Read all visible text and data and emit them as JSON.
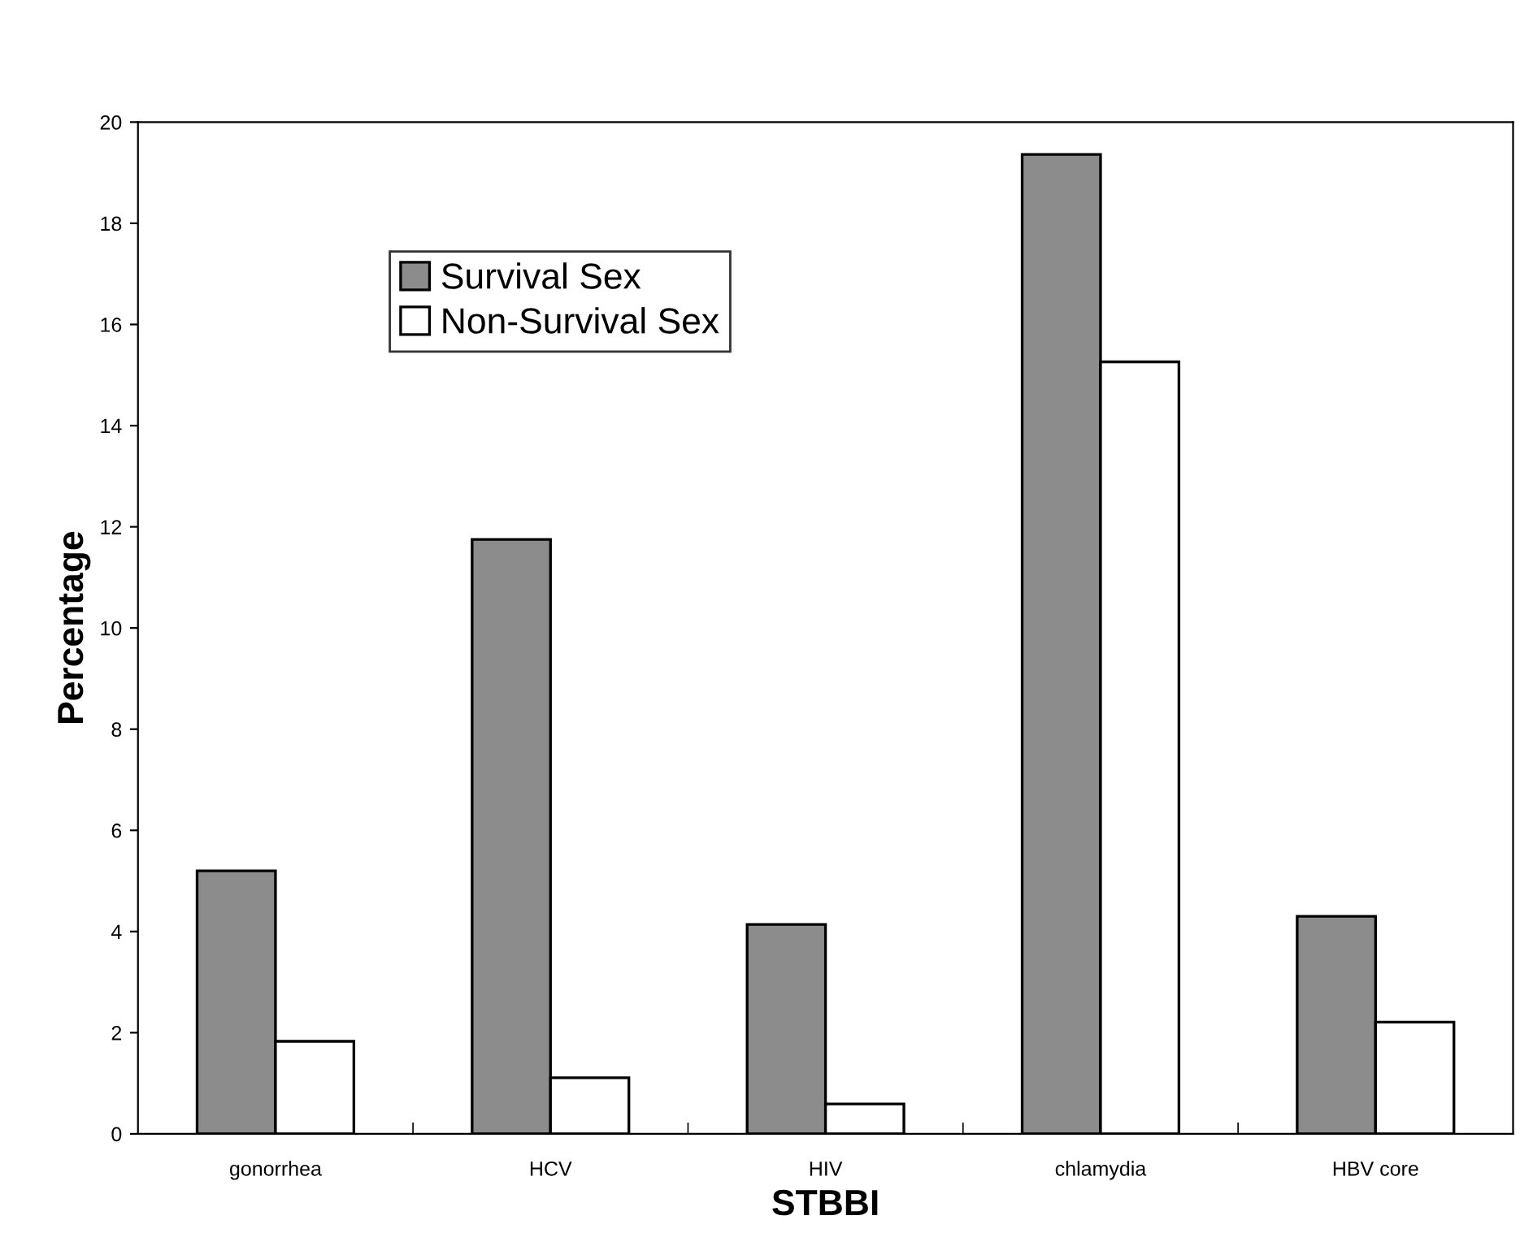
{
  "chart_data": {
    "type": "bar",
    "xlabel": "STBBI",
    "ylabel": "Percentage",
    "categories": [
      "gonorrhea",
      "HCV",
      "HIV",
      "chlamydia",
      "HBV core"
    ],
    "series": [
      {
        "name": "Survival Sex",
        "color": "#8c8c8c",
        "values": [
          5.2,
          11.75,
          4.14,
          19.36,
          4.3
        ]
      },
      {
        "name": "Non-Survival Sex",
        "color": "#ffffff",
        "values": [
          1.83,
          1.11,
          0.59,
          15.26,
          2.21
        ]
      }
    ],
    "ylim": [
      0,
      20
    ],
    "yticks": [
      0,
      2,
      4,
      6,
      8,
      10,
      12,
      14,
      16,
      18,
      20
    ],
    "grid": false,
    "legend": "top left"
  }
}
